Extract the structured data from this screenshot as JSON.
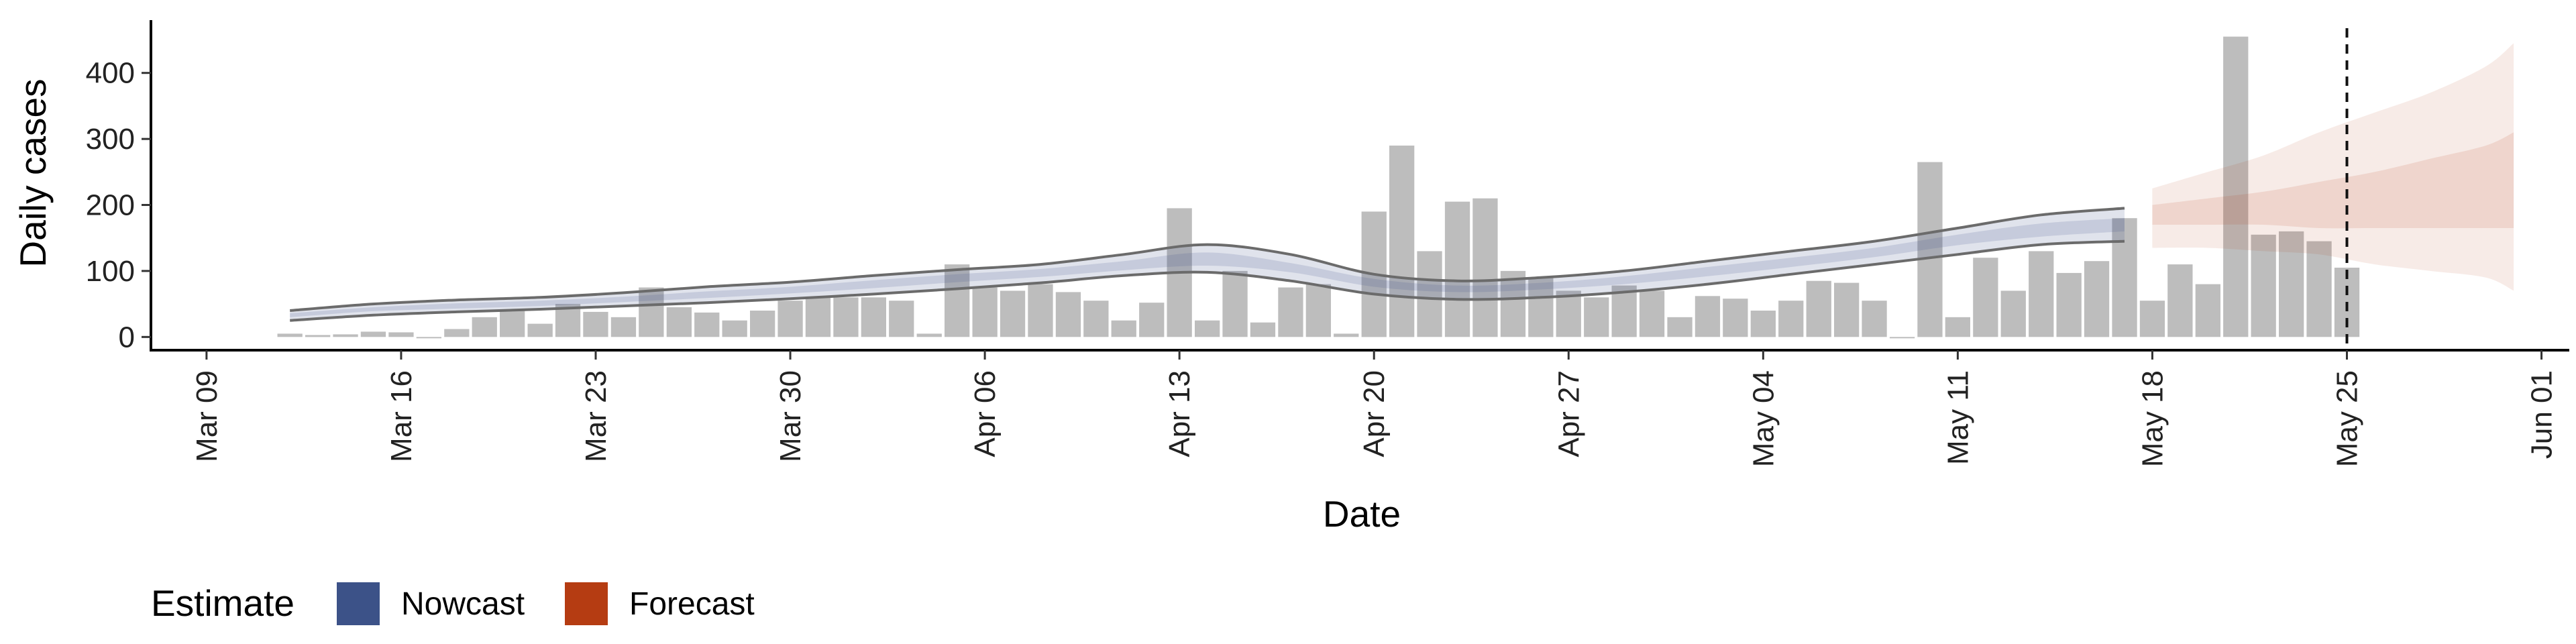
{
  "chart_data": {
    "type": "bar",
    "title": "",
    "xlabel": "Date",
    "ylabel": "Daily cases",
    "x_type": "date",
    "xlim": [
      "2020-03-07",
      "2020-06-02"
    ],
    "ylim": [
      -20,
      480
    ],
    "x_ticks": [
      {
        "date": "2020-03-09",
        "label": "Mar 09"
      },
      {
        "date": "2020-03-16",
        "label": "Mar 16"
      },
      {
        "date": "2020-03-23",
        "label": "Mar 23"
      },
      {
        "date": "2020-03-30",
        "label": "Mar 30"
      },
      {
        "date": "2020-04-06",
        "label": "Apr 06"
      },
      {
        "date": "2020-04-13",
        "label": "Apr 13"
      },
      {
        "date": "2020-04-20",
        "label": "Apr 20"
      },
      {
        "date": "2020-04-27",
        "label": "Apr 27"
      },
      {
        "date": "2020-05-04",
        "label": "May 04"
      },
      {
        "date": "2020-05-11",
        "label": "May 11"
      },
      {
        "date": "2020-05-18",
        "label": "May 18"
      },
      {
        "date": "2020-05-25",
        "label": "May 25"
      },
      {
        "date": "2020-06-01",
        "label": "Jun 01"
      }
    ],
    "y_ticks": [
      0,
      100,
      200,
      300,
      400
    ],
    "grid": false,
    "bar_color": "#bdbdbd",
    "reported_cases": {
      "dates": [
        "2020-03-12",
        "2020-03-13",
        "2020-03-14",
        "2020-03-15",
        "2020-03-16",
        "2020-03-17",
        "2020-03-18",
        "2020-03-19",
        "2020-03-20",
        "2020-03-21",
        "2020-03-22",
        "2020-03-23",
        "2020-03-24",
        "2020-03-25",
        "2020-03-26",
        "2020-03-27",
        "2020-03-28",
        "2020-03-29",
        "2020-03-30",
        "2020-03-31",
        "2020-04-01",
        "2020-04-02",
        "2020-04-03",
        "2020-04-04",
        "2020-04-05",
        "2020-04-06",
        "2020-04-07",
        "2020-04-08",
        "2020-04-09",
        "2020-04-10",
        "2020-04-11",
        "2020-04-12",
        "2020-04-13",
        "2020-04-14",
        "2020-04-15",
        "2020-04-16",
        "2020-04-17",
        "2020-04-18",
        "2020-04-19",
        "2020-04-20",
        "2020-04-21",
        "2020-04-22",
        "2020-04-23",
        "2020-04-24",
        "2020-04-25",
        "2020-04-26",
        "2020-04-27",
        "2020-04-28",
        "2020-04-29",
        "2020-04-30",
        "2020-05-01",
        "2020-05-02",
        "2020-05-03",
        "2020-05-04",
        "2020-05-05",
        "2020-05-06",
        "2020-05-07",
        "2020-05-08",
        "2020-05-09",
        "2020-05-10",
        "2020-05-11",
        "2020-05-12",
        "2020-05-13",
        "2020-05-14",
        "2020-05-15",
        "2020-05-16",
        "2020-05-17",
        "2020-05-18",
        "2020-05-19",
        "2020-05-20",
        "2020-05-21",
        "2020-05-22",
        "2020-05-23",
        "2020-05-24",
        "2020-05-25"
      ],
      "values": [
        5,
        3,
        4,
        8,
        7,
        0,
        12,
        30,
        40,
        20,
        50,
        38,
        30,
        75,
        45,
        37,
        25,
        40,
        55,
        60,
        60,
        60,
        55,
        5,
        110,
        75,
        70,
        80,
        68,
        55,
        25,
        52,
        195,
        25,
        100,
        22,
        75,
        80,
        5,
        190,
        290,
        130,
        205,
        210,
        100,
        90,
        70,
        60,
        78,
        70,
        30,
        62,
        58,
        40,
        55,
        85,
        82,
        55,
        0,
        265,
        30,
        120,
        70,
        130,
        97,
        115,
        180,
        55,
        110,
        80,
        455,
        155,
        160,
        145,
        105
      ]
    },
    "series": [
      {
        "name": "Nowcast",
        "color": "#3c5288",
        "dates": [
          "2020-03-12",
          "2020-03-15",
          "2020-03-18",
          "2020-03-21",
          "2020-03-24",
          "2020-03-27",
          "2020-03-30",
          "2020-04-02",
          "2020-04-05",
          "2020-04-08",
          "2020-04-11",
          "2020-04-14",
          "2020-04-17",
          "2020-04-20",
          "2020-04-23",
          "2020-04-26",
          "2020-04-29",
          "2020-05-02",
          "2020-05-05",
          "2020-05-08",
          "2020-05-11",
          "2020-05-14",
          "2020-05-17"
        ],
        "upper": [
          40,
          50,
          56,
          60,
          67,
          76,
          83,
          93,
          102,
          110,
          125,
          140,
          125,
          95,
          85,
          90,
          100,
          115,
          130,
          145,
          165,
          185,
          195
        ],
        "q75": [
          36,
          45,
          51,
          55,
          61,
          69,
          76,
          86,
          95,
          103,
          115,
          128,
          112,
          88,
          78,
          82,
          92,
          106,
          120,
          135,
          155,
          172,
          180
        ],
        "median": [
          33,
          42,
          47,
          51,
          57,
          64,
          71,
          80,
          89,
          97,
          108,
          118,
          105,
          82,
          73,
          77,
          86,
          99,
          113,
          128,
          147,
          162,
          170
        ],
        "q25": [
          30,
          39,
          43,
          47,
          53,
          59,
          66,
          74,
          83,
          91,
          101,
          108,
          98,
          76,
          68,
          72,
          80,
          92,
          106,
          121,
          139,
          152,
          160
        ],
        "lower": [
          25,
          33,
          38,
          42,
          47,
          52,
          58,
          65,
          73,
          82,
          93,
          98,
          85,
          65,
          57,
          60,
          68,
          80,
          95,
          110,
          125,
          140,
          145
        ]
      },
      {
        "name": "Forecast",
        "color": "#b53c12",
        "dates": [
          "2020-05-18",
          "2020-05-20",
          "2020-05-22",
          "2020-05-24",
          "2020-05-26",
          "2020-05-28",
          "2020-05-30",
          "2020-05-31"
        ],
        "upper": [
          225,
          250,
          275,
          310,
          340,
          370,
          410,
          445
        ],
        "q75": [
          200,
          210,
          220,
          235,
          250,
          270,
          290,
          310
        ],
        "median": [
          185,
          195,
          205,
          215,
          225,
          240,
          255,
          265
        ],
        "q25": [
          170,
          170,
          170,
          165,
          165,
          165,
          165,
          165
        ],
        "lower": [
          135,
          135,
          130,
          125,
          110,
          100,
          90,
          70
        ]
      }
    ],
    "vline": {
      "date": "2020-05-25",
      "style": "dashed"
    },
    "legend": {
      "title": "Estimate",
      "position": "bottom-left",
      "items": [
        {
          "label": "Nowcast",
          "color": "#3c5288"
        },
        {
          "label": "Forecast",
          "color": "#b53c12"
        }
      ]
    }
  }
}
